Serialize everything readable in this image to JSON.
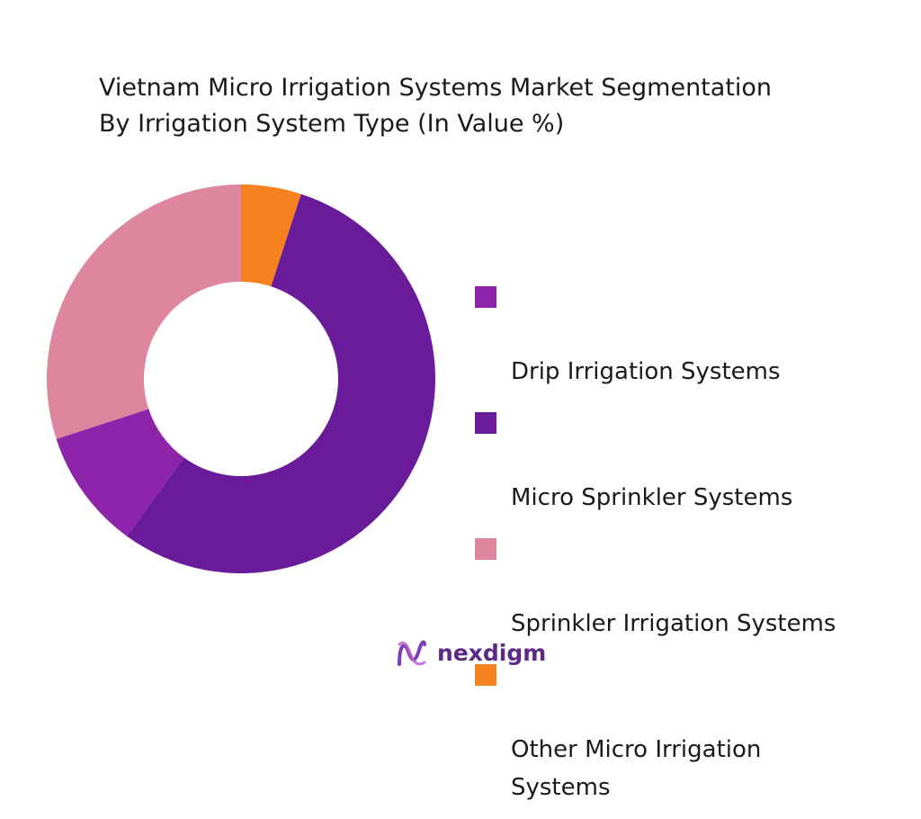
{
  "chart_data": {
    "type": "pie",
    "title_lines": [
      "Vietnam Micro Irrigation Systems Market Segmentation",
      "By Irrigation System Type (In Value %)"
    ],
    "donut": true,
    "legend_position": "right",
    "series": [
      {
        "name": "Drip Irrigation Systems",
        "value": 10,
        "color": "#8e24aa"
      },
      {
        "name": "Micro Sprinkler Systems",
        "value": 55,
        "color": "#6a1b9a"
      },
      {
        "name": "Sprinkler Irrigation Systems",
        "value": 30,
        "color": "#de869e"
      },
      {
        "name": "Other Micro Irrigation\nSystems",
        "value": 5,
        "color": "#f5821f"
      }
    ],
    "slice_order": [
      3,
      1,
      0,
      2
    ]
  },
  "brand": {
    "name": "nexdigm",
    "color": "#5b2a86",
    "icon": "nexdigm-logo-icon"
  }
}
